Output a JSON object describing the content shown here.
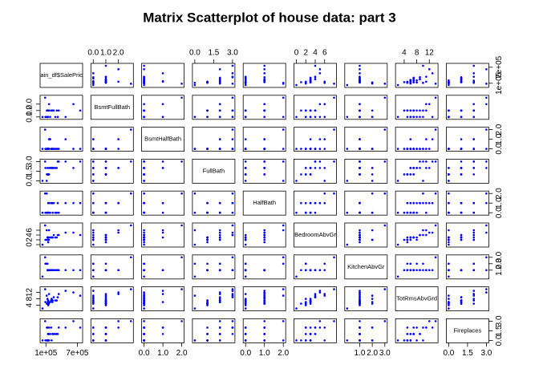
{
  "chart_data": {
    "type": "scatter-matrix",
    "title": "Matrix Scatterplot of house data: part 3",
    "color": "#0000ff",
    "variables": [
      {
        "name": "train_df$SalePrice",
        "lim": [
          34900,
          755000
        ],
        "ticks": [
          {
            "value": 100000,
            "label": "1e+05"
          },
          {
            "value": 700000,
            "label": "7e+05"
          }
        ]
      },
      {
        "name": "BsmtFullBath",
        "lim": [
          0,
          3
        ],
        "ticks": [
          {
            "value": 0,
            "label": "0.0"
          },
          {
            "value": 1,
            "label": "1.0"
          },
          {
            "value": 2,
            "label": "2.0"
          }
        ]
      },
      {
        "name": "BsmtHalfBath",
        "lim": [
          0,
          2
        ],
        "ticks": [
          {
            "value": 0,
            "label": "0.0"
          },
          {
            "value": 1,
            "label": "1.0"
          },
          {
            "value": 2,
            "label": "2.0"
          }
        ]
      },
      {
        "name": "FullBath",
        "lim": [
          0,
          3
        ],
        "ticks": [
          {
            "value": 0,
            "label": "0.0"
          },
          {
            "value": 1.5,
            "label": "1.5"
          },
          {
            "value": 3,
            "label": "3.0"
          }
        ]
      },
      {
        "name": "HalfBath",
        "lim": [
          0,
          2
        ],
        "ticks": [
          {
            "value": 0,
            "label": "0.0"
          },
          {
            "value": 1,
            "label": "1.0"
          },
          {
            "value": 2,
            "label": "2.0"
          }
        ]
      },
      {
        "name": "BedroomAbvGr",
        "lim": [
          0,
          8
        ],
        "ticks": [
          0,
          2,
          4,
          6
        ]
      },
      {
        "name": "KitchenAbvGr",
        "lim": [
          0,
          3
        ],
        "ticks": [
          {
            "value": 1,
            "label": "1.0"
          },
          {
            "value": 2,
            "label": "2.0"
          },
          {
            "value": 3,
            "label": "3.0"
          }
        ]
      },
      {
        "name": "TotRmsAbvGrd",
        "lim": [
          2,
          14
        ],
        "ticks": [
          4,
          8,
          12
        ]
      },
      {
        "name": "Fireplaces",
        "lim": [
          0,
          3
        ],
        "ticks": [
          {
            "value": 0,
            "label": "0.0"
          },
          {
            "value": 1.5,
            "label": "1.5"
          },
          {
            "value": 3,
            "label": "3.0"
          }
        ]
      }
    ],
    "observations": [
      [
        208500,
        1,
        0,
        2,
        1,
        3,
        1,
        8,
        0
      ],
      [
        181500,
        0,
        1,
        2,
        0,
        3,
        1,
        6,
        1
      ],
      [
        223500,
        1,
        0,
        2,
        1,
        3,
        1,
        6,
        1
      ],
      [
        140000,
        1,
        0,
        1,
        0,
        3,
        1,
        7,
        1
      ],
      [
        250000,
        1,
        0,
        2,
        1,
        4,
        1,
        9,
        1
      ],
      [
        143000,
        1,
        0,
        1,
        1,
        1,
        1,
        5,
        0
      ],
      [
        307000,
        1,
        0,
        2,
        0,
        3,
        1,
        7,
        1
      ],
      [
        200000,
        1,
        0,
        2,
        1,
        3,
        1,
        7,
        2
      ],
      [
        129900,
        0,
        0,
        2,
        0,
        2,
        2,
        8,
        2
      ],
      [
        118000,
        1,
        0,
        1,
        0,
        2,
        2,
        5,
        2
      ],
      [
        129500,
        1,
        0,
        1,
        0,
        3,
        1,
        5,
        0
      ],
      [
        345000,
        1,
        0,
        3,
        0,
        4,
        1,
        11,
        2
      ],
      [
        144000,
        1,
        0,
        1,
        0,
        2,
        1,
        4,
        0
      ],
      [
        279500,
        0,
        0,
        2,
        0,
        3,
        1,
        7,
        1
      ],
      [
        157000,
        1,
        0,
        1,
        1,
        2,
        1,
        5,
        1
      ],
      [
        132000,
        0,
        0,
        1,
        0,
        2,
        1,
        5,
        0
      ],
      [
        149000,
        1,
        0,
        1,
        0,
        2,
        1,
        5,
        1
      ],
      [
        90000,
        0,
        0,
        2,
        0,
        2,
        2,
        6,
        0
      ],
      [
        159000,
        1,
        0,
        1,
        1,
        3,
        1,
        6,
        0
      ],
      [
        139000,
        0,
        0,
        1,
        0,
        3,
        1,
        6,
        0
      ],
      [
        325300,
        0,
        0,
        3,
        1,
        4,
        1,
        9,
        1
      ],
      [
        139400,
        0,
        0,
        1,
        0,
        3,
        1,
        7,
        1
      ],
      [
        230000,
        1,
        0,
        2,
        0,
        3,
        1,
        7,
        1
      ],
      [
        755000,
        1,
        0,
        3,
        1,
        4,
        1,
        10,
        2
      ],
      [
        34900,
        0,
        0,
        0,
        0,
        0,
        0,
        2,
        0
      ],
      [
        625000,
        2,
        0,
        2,
        1,
        5,
        1,
        12,
        3
      ],
      [
        85000,
        3,
        2,
        3,
        2,
        8,
        3,
        14,
        3
      ],
      [
        160000,
        2,
        1,
        2,
        1,
        6,
        1,
        11,
        2
      ],
      [
        475000,
        0,
        1,
        3,
        1,
        5,
        1,
        13,
        2
      ],
      [
        115000,
        0,
        0,
        0,
        2,
        6,
        2,
        10,
        0
      ]
    ]
  }
}
